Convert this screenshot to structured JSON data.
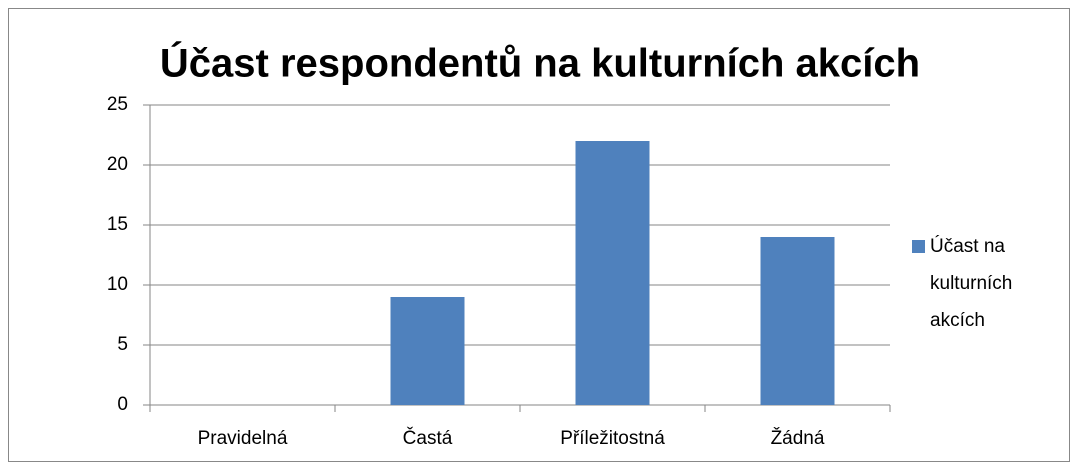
{
  "chart_data": {
    "type": "bar",
    "title": "Účast respondentů na kulturních akcích",
    "categories": [
      "Pravidelná",
      "Častá",
      "Příležitostná",
      "Žádná"
    ],
    "series": [
      {
        "name": "Účast na kulturních akcích",
        "color": "#4f81bd",
        "values": [
          0,
          9,
          22,
          14
        ]
      }
    ],
    "ylim": [
      0,
      25
    ],
    "yticks": [
      0,
      5,
      10,
      15,
      20,
      25
    ],
    "grid": true,
    "legend": "right"
  }
}
